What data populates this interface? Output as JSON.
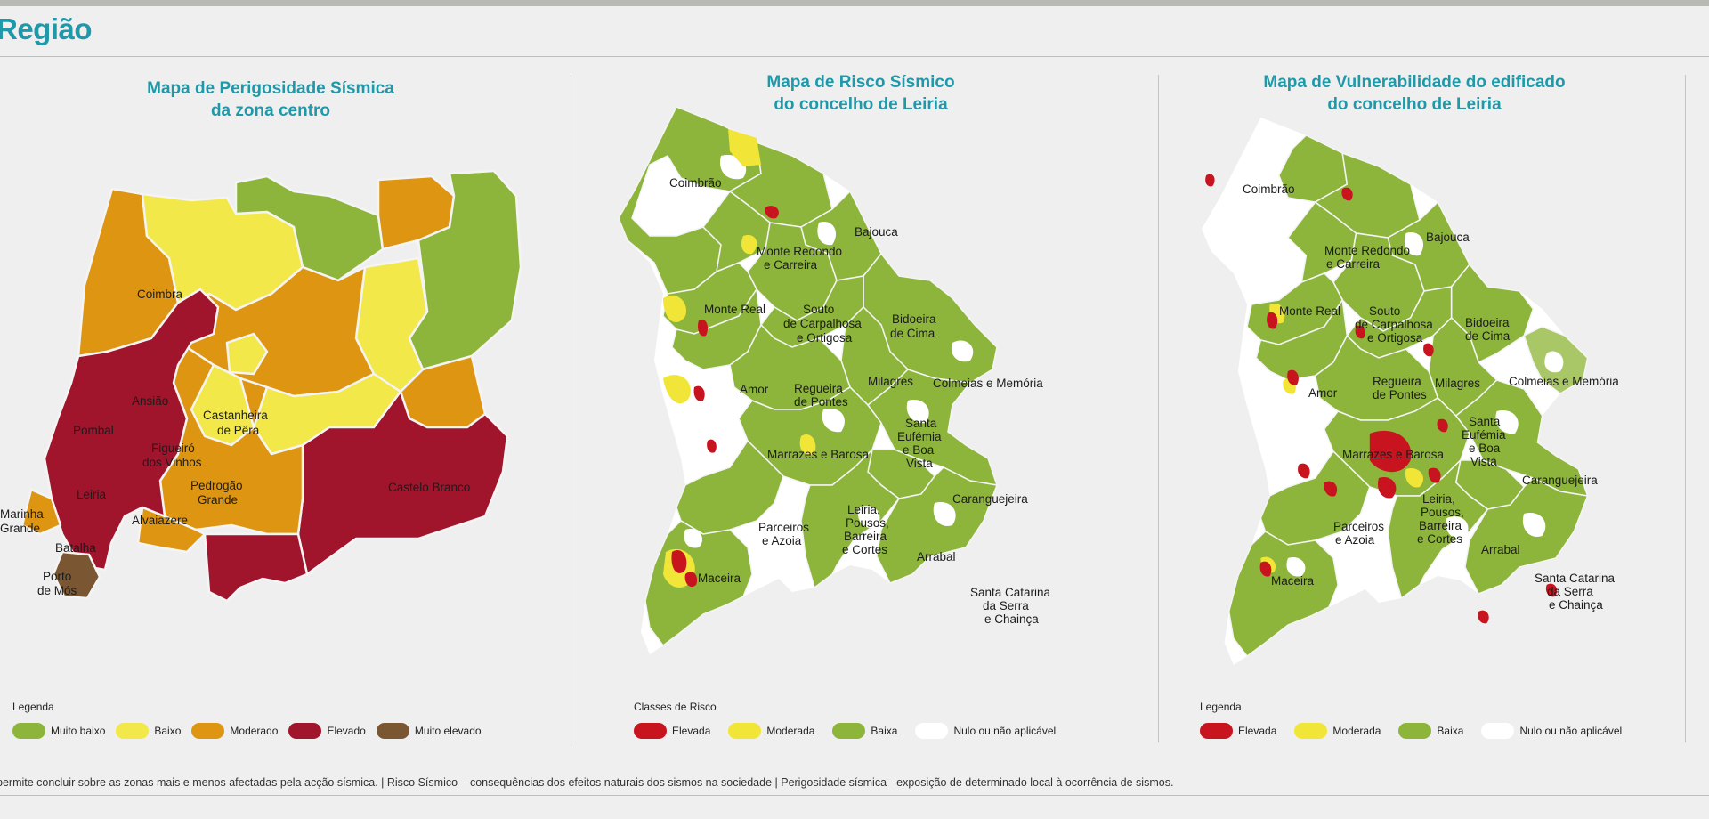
{
  "region_title": "Região",
  "panels": [
    {
      "title_line1": "Mapa de Perigosidade Sísmica",
      "title_line2": "da zona centro",
      "places": [
        "Coimbra",
        "Ansião",
        "Pombal",
        "Castanheira",
        "de Pêra",
        "Figueiró",
        "dos Vinhos",
        "Leiria",
        "Pedrogão",
        "Grande",
        "Castelo Branco",
        "Marinha",
        "Grande",
        "Alvaiazere",
        "Batalha",
        "Porto",
        "de Mós"
      ],
      "legend_title": "Legenda",
      "legend": [
        {
          "label": "Muito baixo",
          "color": "#8db53c"
        },
        {
          "label": "Baixo",
          "color": "#f2e84a"
        },
        {
          "label": "Moderado",
          "color": "#de9612"
        },
        {
          "label": "Elevado",
          "color": "#a0142c"
        },
        {
          "label": "Muito elevado",
          "color": "#7a5732"
        }
      ]
    },
    {
      "title_line1": "Mapa de Risco Sísmico",
      "title_line2": "do concelho de Leiria",
      "places": [
        "Coimbrão",
        "Bajouca",
        "Monte Redondo",
        "e Carreira",
        "Monte Real",
        "Souto",
        "de Carpalhosa",
        "e Ortigosa",
        "Bidoeira",
        "de Cima",
        "Amor",
        "Regueira",
        "de Pontes",
        "Milagres",
        "Colmeias e Memória",
        "Santa",
        "Eufémia",
        "e Boa",
        "Vista",
        "Marrazes e Barosa",
        "Caranguejeira",
        "Leiria,",
        "Pousos,",
        "Barreira",
        "e Cortes",
        "Parceiros",
        "e Azoia",
        "Arrabal",
        "Maceira",
        "Santa Catarina",
        "da Serra",
        "e Chainça"
      ],
      "legend_title": "Classes de Risco",
      "legend": [
        {
          "label": "Elevada",
          "color": "#c8141e"
        },
        {
          "label": "Moderada",
          "color": "#f1e637"
        },
        {
          "label": "Baixa",
          "color": "#8db53c"
        },
        {
          "label": "Nulo ou não aplicável",
          "color": "#ffffff"
        }
      ]
    },
    {
      "title_line1": "Mapa de Vulnerabilidade  do edificado",
      "title_line2": "do concelho de Leiria",
      "places": [
        "Coimbrão",
        "Bajouca",
        "Monte Redondo",
        "e Carreira",
        "Monte Real",
        "Souto",
        "de Carpalhosa",
        "e Ortigosa",
        "Bidoeira",
        "de Cima",
        "Amor",
        "Regueira",
        "de Pontes",
        "Milagres",
        "Colmeias e Memória",
        "Santa",
        "Eufémia",
        "e Boa",
        "Vista",
        "Marrazes e Barosa",
        "Caranguejeira",
        "Leiria,",
        "Pousos,",
        "Barreira",
        "e Cortes",
        "Parceiros",
        "e Azoia",
        "Arrabal",
        "Maceira",
        "Santa Catarina",
        "da Serra",
        "e Chainça"
      ],
      "legend_title": "Legenda",
      "legend": [
        {
          "label": "Elevada",
          "color": "#c8141e"
        },
        {
          "label": "Moderada",
          "color": "#f1e637"
        },
        {
          "label": "Baixa",
          "color": "#8db53c"
        },
        {
          "label": "Nulo ou não aplicável",
          "color": "#ffffff"
        }
      ]
    }
  ],
  "footnote": "permite concluir sobre as zonas mais e menos afectadas pela acção sísmica. | Risco Sísmico – consequências dos efeitos naturais dos sismos na sociedade | Perigosidade sísmica -  exposição de determinado local à ocorrência de sismos."
}
